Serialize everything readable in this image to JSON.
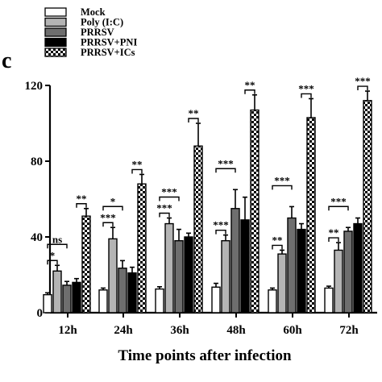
{
  "panel_label": "c",
  "colors": {
    "mock": "#ffffff",
    "poly": "#b4b4b4",
    "prrsv": "#6e6e6e",
    "pni": "#000000",
    "ics": "checkered black/white",
    "axis": "#000000"
  },
  "chart_data": {
    "type": "bar",
    "title": "",
    "xlabel": "Time points after infection",
    "ylabel": "",
    "ylim": [
      0,
      120
    ],
    "yticks": [
      0,
      40,
      80,
      120
    ],
    "grid": false,
    "legend_position": "top-left",
    "error_bars": true,
    "categories": [
      "12h",
      "24h",
      "36h",
      "48h",
      "60h",
      "72h"
    ],
    "series": [
      {
        "name": "Mock",
        "fill": "white",
        "values": [
          9.5,
          12,
          12.5,
          13.5,
          12,
          13
        ],
        "errors": [
          1,
          1,
          1.2,
          2,
          1,
          1
        ]
      },
      {
        "name": "Poly (I:C)",
        "fill": "light-gray",
        "values": [
          22,
          39,
          47,
          38,
          31,
          33
        ],
        "errors": [
          3,
          6,
          3,
          3,
          2,
          4
        ]
      },
      {
        "name": "PRRSV",
        "fill": "dark-gray",
        "values": [
          14.5,
          23.5,
          38,
          55,
          50,
          43
        ],
        "errors": [
          2,
          4,
          6,
          10,
          6,
          2
        ]
      },
      {
        "name": "PRRSV+PNI",
        "fill": "black",
        "values": [
          16,
          21,
          40,
          49,
          44,
          47
        ],
        "errors": [
          2,
          3,
          2,
          12,
          3,
          3
        ]
      },
      {
        "name": "PRRSV+ICs",
        "fill": "checkered",
        "values": [
          51,
          68,
          88,
          107,
          103,
          112
        ],
        "errors": [
          4,
          5,
          12,
          8,
          10,
          5
        ]
      }
    ],
    "significance": [
      {
        "category": "12h",
        "label": "ns",
        "between": [
          "Mock",
          "PRRSV"
        ]
      },
      {
        "category": "12h",
        "label": "*",
        "between": [
          "Mock",
          "Poly (I:C)"
        ]
      },
      {
        "category": "12h",
        "label": "**",
        "between": [
          "PRRSV+PNI",
          "PRRSV+ICs"
        ]
      },
      {
        "category": "24h",
        "label": "*",
        "between": [
          "Mock",
          "PRRSV"
        ]
      },
      {
        "category": "24h",
        "label": "***",
        "between": [
          "Mock",
          "Poly (I:C)"
        ]
      },
      {
        "category": "24h",
        "label": "**",
        "between": [
          "PRRSV+PNI",
          "PRRSV+ICs"
        ]
      },
      {
        "category": "36h",
        "label": "***",
        "between": [
          "Mock",
          "PRRSV"
        ]
      },
      {
        "category": "36h",
        "label": "***",
        "between": [
          "Mock",
          "Poly (I:C)"
        ]
      },
      {
        "category": "36h",
        "label": "**",
        "between": [
          "PRRSV+PNI",
          "PRRSV+ICs"
        ]
      },
      {
        "category": "48h",
        "label": "***",
        "between": [
          "Mock",
          "PRRSV"
        ]
      },
      {
        "category": "48h",
        "label": "***",
        "between": [
          "Mock",
          "Poly (I:C)"
        ]
      },
      {
        "category": "48h",
        "label": "**",
        "between": [
          "PRRSV+PNI",
          "PRRSV+ICs"
        ]
      },
      {
        "category": "60h",
        "label": "***",
        "between": [
          "Mock",
          "PRRSV"
        ]
      },
      {
        "category": "60h",
        "label": "**",
        "between": [
          "Mock",
          "Poly (I:C)"
        ]
      },
      {
        "category": "60h",
        "label": "***",
        "between": [
          "PRRSV+PNI",
          "PRRSV+ICs"
        ]
      },
      {
        "category": "72h",
        "label": "***",
        "between": [
          "Mock",
          "PRRSV"
        ]
      },
      {
        "category": "72h",
        "label": "**",
        "between": [
          "Mock",
          "Poly (I:C)"
        ]
      },
      {
        "category": "72h",
        "label": "***",
        "between": [
          "PRRSV+PNI",
          "PRRSV+ICs"
        ]
      }
    ]
  }
}
